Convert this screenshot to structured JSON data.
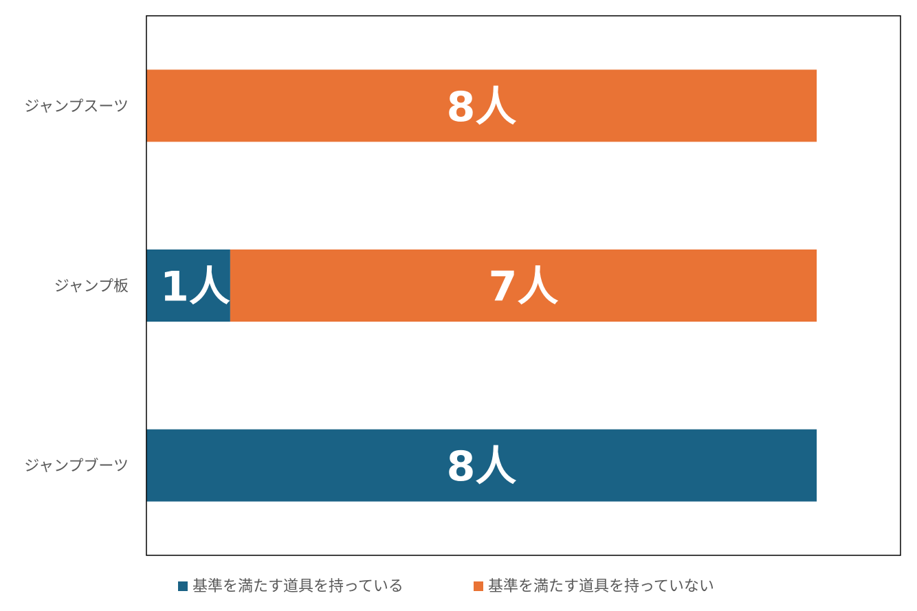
{
  "chart_data": {
    "type": "bar",
    "orientation": "horizontal",
    "stacked": true,
    "categories": [
      "ジャンプスーツ",
      "ジャンプ板",
      "ジャンプブーツ"
    ],
    "series": [
      {
        "name": "基準を満たす道具を持っている",
        "values": [
          0,
          1,
          8
        ],
        "color": "#1a6285",
        "data_labels": [
          "",
          "1人",
          "8人"
        ]
      },
      {
        "name": "基準を満たす道具を持っていない",
        "values": [
          8,
          7,
          0
        ],
        "color": "#e97335",
        "data_labels": [
          "8人",
          "7人",
          ""
        ]
      }
    ],
    "xlim": [
      0,
      9
    ],
    "grid": false,
    "axis_ticks_visible": false,
    "legend_position": "bottom",
    "title": "",
    "xlabel": "",
    "ylabel": ""
  }
}
